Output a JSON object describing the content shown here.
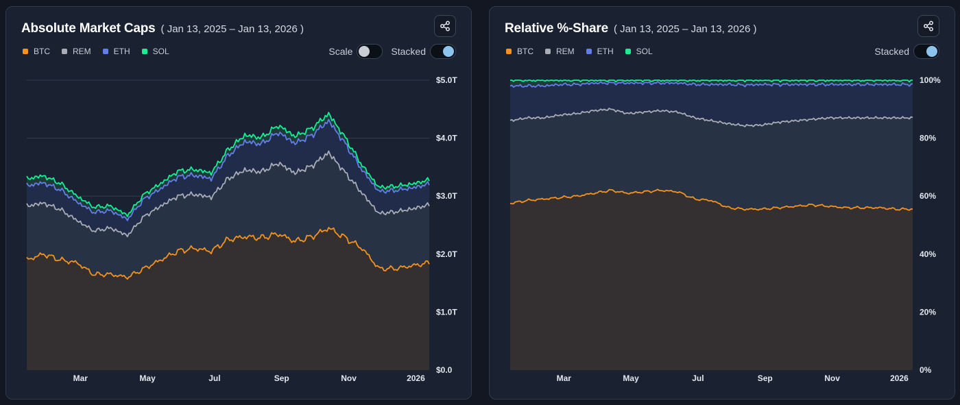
{
  "colors": {
    "btc": "#f7931a",
    "rem": "#a8adb6",
    "eth": "#627eea",
    "sol": "#14f195"
  },
  "chart_data": [
    {
      "type": "area",
      "title": "Absolute Market Caps",
      "subtitle": "( Jan 13, 2025 – Jan 13, 2026 )",
      "stacked": true,
      "ylim": [
        0,
        5.0
      ],
      "ytick_labels": [
        "$0.0",
        "$1.0T",
        "$2.0T",
        "$3.0T",
        "$4.0T",
        "$5.0T"
      ],
      "ytick_values": [
        0,
        1,
        2,
        3,
        4,
        5
      ],
      "xtick_labels": [
        "Mar",
        "May",
        "Jul",
        "Sep",
        "Nov",
        "2026"
      ],
      "xtick_months": [
        1.6,
        3.6,
        5.6,
        7.6,
        9.6,
        11.6
      ],
      "x_months": [
        0,
        0.5,
        1,
        1.5,
        2,
        2.5,
        3,
        3.5,
        4,
        4.5,
        5,
        5.5,
        6,
        6.5,
        7,
        7.5,
        8,
        8.5,
        9,
        9.5,
        10,
        10.5,
        11,
        11.5,
        12
      ],
      "series": [
        {
          "name": "BTC",
          "values": [
            1.9,
            2.0,
            1.9,
            1.85,
            1.65,
            1.65,
            1.6,
            1.75,
            1.9,
            2.05,
            2.1,
            2.05,
            2.25,
            2.3,
            2.28,
            2.35,
            2.22,
            2.3,
            2.45,
            2.28,
            2.1,
            1.75,
            1.75,
            1.8,
            1.85
          ]
        },
        {
          "name": "REM",
          "values": [
            0.93,
            0.88,
            0.87,
            0.73,
            0.75,
            0.8,
            0.72,
            0.9,
            0.93,
            0.95,
            0.93,
            0.93,
            1.05,
            1.15,
            1.14,
            1.22,
            1.18,
            1.22,
            1.3,
            1.12,
            0.95,
            0.95,
            0.98,
            0.98,
            1.0
          ]
        },
        {
          "name": "ETH",
          "values": [
            0.35,
            0.35,
            0.34,
            0.32,
            0.32,
            0.3,
            0.28,
            0.3,
            0.3,
            0.33,
            0.33,
            0.32,
            0.4,
            0.49,
            0.48,
            0.53,
            0.51,
            0.53,
            0.55,
            0.5,
            0.4,
            0.38,
            0.37,
            0.36,
            0.36
          ]
        },
        {
          "name": "SOL",
          "values": [
            0.12,
            0.12,
            0.11,
            0.1,
            0.09,
            0.08,
            0.07,
            0.08,
            0.09,
            0.1,
            0.1,
            0.1,
            0.1,
            0.11,
            0.11,
            0.12,
            0.12,
            0.12,
            0.12,
            0.1,
            0.08,
            0.07,
            0.07,
            0.07,
            0.07
          ]
        }
      ]
    },
    {
      "type": "area",
      "title": "Relative %-Share",
      "subtitle": "( Jan 13, 2025 – Jan 13, 2026 )",
      "stacked": true,
      "ylim": [
        0,
        100
      ],
      "ytick_labels": [
        "0%",
        "20%",
        "40%",
        "60%",
        "80%",
        "100%"
      ],
      "ytick_values": [
        0,
        20,
        40,
        60,
        80,
        100
      ],
      "xtick_labels": [
        "Mar",
        "May",
        "Jul",
        "Sep",
        "Nov",
        "2026"
      ],
      "xtick_months": [
        1.6,
        3.6,
        5.6,
        7.6,
        9.6,
        11.6
      ],
      "x_months": [
        0,
        0.5,
        1,
        1.5,
        2,
        2.5,
        3,
        3.5,
        4,
        4.5,
        5,
        5.5,
        6,
        6.5,
        7,
        7.5,
        8,
        8.5,
        9,
        9.5,
        10,
        10.5,
        11,
        11.5,
        12
      ],
      "series": [
        {
          "name": "BTC",
          "values": [
            57.5,
            58.5,
            59.0,
            59.5,
            60.0,
            61.0,
            62.0,
            61.0,
            61.5,
            62.0,
            61.5,
            59.0,
            58.5,
            56.0,
            55.5,
            55.5,
            56.0,
            56.5,
            57.0,
            56.5,
            56.0,
            56.0,
            56.0,
            55.5,
            55.5
          ]
        },
        {
          "name": "REM",
          "values": [
            28.5,
            28.5,
            28.0,
            28.5,
            28.5,
            28.5,
            28.0,
            27.5,
            27.5,
            27.5,
            27.5,
            28.0,
            27.5,
            29.0,
            28.8,
            29.0,
            29.5,
            29.5,
            29.5,
            30.5,
            31.0,
            31.0,
            31.0,
            31.5,
            31.5
          ]
        },
        {
          "name": "ETH",
          "values": [
            12.0,
            11.0,
            11.0,
            10.5,
            10.0,
            9.5,
            9.0,
            10.5,
            10.0,
            9.5,
            10.0,
            11.5,
            12.5,
            13.5,
            14.0,
            14.0,
            13.0,
            12.5,
            12.0,
            11.5,
            11.5,
            11.5,
            11.5,
            11.5,
            11.5
          ]
        },
        {
          "name": "SOL",
          "values": [
            2.0,
            2.0,
            2.0,
            1.5,
            1.5,
            1.0,
            1.0,
            1.0,
            1.0,
            1.0,
            1.0,
            1.5,
            1.5,
            1.5,
            1.7,
            1.5,
            1.5,
            1.5,
            1.5,
            1.5,
            1.5,
            1.5,
            1.5,
            1.5,
            1.5
          ]
        }
      ]
    }
  ],
  "left_panel": {
    "legend": [
      {
        "label": "BTC"
      },
      {
        "label": "REM"
      },
      {
        "label": "ETH"
      },
      {
        "label": "SOL"
      }
    ],
    "scale_label": "Scale",
    "scale_on": false,
    "stacked_label": "Stacked",
    "stacked_on": true
  },
  "right_panel": {
    "legend": [
      {
        "label": "BTC"
      },
      {
        "label": "REM"
      },
      {
        "label": "ETH"
      },
      {
        "label": "SOL"
      }
    ],
    "stacked_label": "Stacked",
    "stacked_on": true
  }
}
